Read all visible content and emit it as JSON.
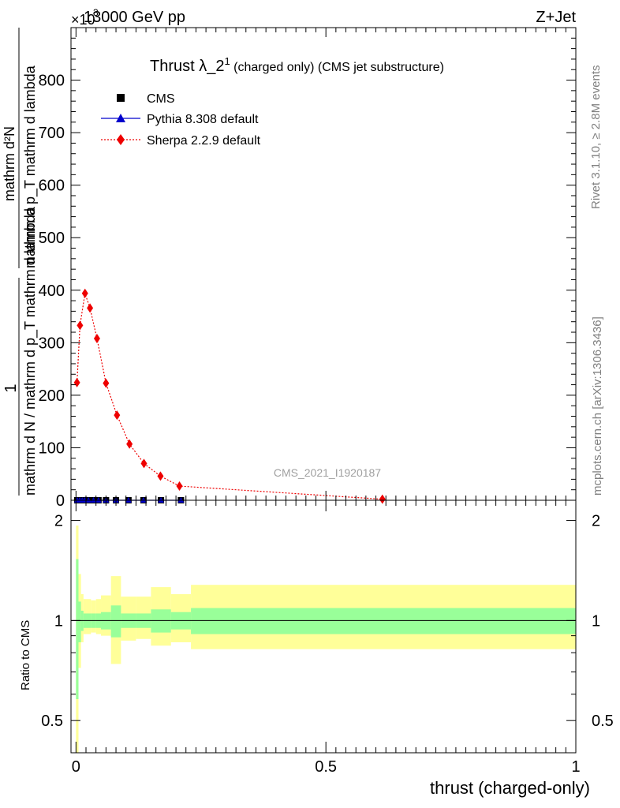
{
  "header": {
    "energy": "13000 GeV pp",
    "process": "Z+Jet",
    "multiplier": "×10",
    "exponent": "3"
  },
  "side_labels": {
    "rivet": "Rivet 3.1.10, ≥ 2.8M events",
    "mcplots": "mcplots.cern.ch [arXiv:1306.3436]"
  },
  "main_plot": {
    "title_main": "Thrust λ_2",
    "title_sup": "1",
    "title_sub": " (charged only) (CMS jet substructure)",
    "ylabel_fraction_top": "1",
    "ylabel_fraction_mid": "mathrm d N / mathrm d p_T mathrm d lambda",
    "ylabel_right_top": "mathrm d²N",
    "ylabel_right_bottom": "mathrm d p_T mathrm d lambda",
    "watermark": "CMS_2021_I1920187",
    "legend": [
      {
        "label": "CMS",
        "marker": "square",
        "color": "#000000"
      },
      {
        "label": "Pythia 8.308 default",
        "marker": "triangle",
        "color": "#0000cc"
      },
      {
        "label": "Sherpa 2.2.9 default",
        "marker": "diamond",
        "color": "#ee0000"
      }
    ],
    "yticks": [
      "0",
      "100",
      "200",
      "300",
      "400",
      "500",
      "600",
      "700",
      "800"
    ]
  },
  "ratio_plot": {
    "ylabel": "Ratio to CMS",
    "yticks": [
      "0.5",
      "1",
      "2"
    ],
    "xticks": [
      "0",
      "0.5",
      "1"
    ],
    "xlabel": "thrust (charged-only)"
  },
  "colors": {
    "cms": "#000000",
    "pythia": "#0000cc",
    "sherpa": "#ee0000",
    "band_inner": "#99ff99",
    "band_outer": "#ffff99"
  },
  "chart_data": [
    {
      "type": "scatter",
      "xlabel": "",
      "ylabel": "1 / mathrm d N / mathrm d p_T mathrm d lambda · mathrm d²N / mathrm d p_T mathrm d lambda",
      "xlim": [
        -0.01,
        1.0
      ],
      "ylim": [
        0,
        900
      ],
      "y_multiplier": 1000,
      "series": [
        {
          "name": "CMS",
          "x": [
            0.0025,
            0.0075,
            0.0125,
            0.0175,
            0.025,
            0.035,
            0.045,
            0.06,
            0.08,
            0.105,
            0.135,
            0.17,
            0.21
          ],
          "y": [
            0,
            0,
            0,
            0,
            0,
            0,
            0,
            0,
            0,
            0,
            0,
            0,
            0
          ]
        },
        {
          "name": "Pythia 8.308 default",
          "x": [
            0.0025,
            0.0075,
            0.0125,
            0.0175,
            0.025,
            0.035,
            0.045,
            0.06,
            0.08,
            0.105,
            0.135,
            0.17,
            0.21
          ],
          "y": [
            0,
            0,
            0,
            0,
            0,
            0,
            0,
            0,
            0,
            0,
            0,
            0,
            0
          ]
        },
        {
          "name": "Sherpa 2.2.9 default",
          "x": [
            0.002,
            0.008,
            0.018,
            0.028,
            0.042,
            0.06,
            0.082,
            0.107,
            0.136,
            0.169,
            0.207,
            0.613
          ],
          "y": [
            224,
            333,
            394,
            366,
            308,
            223,
            162,
            107,
            70,
            46,
            27,
            2
          ]
        }
      ]
    },
    {
      "type": "area",
      "ylabel": "Ratio to CMS",
      "xlabel": "thrust (charged-only)",
      "xlim": [
        -0.01,
        1.0
      ],
      "ylim": [
        0.4,
        2.3
      ],
      "y_scale": "log",
      "reference": 1.0,
      "bands": {
        "bin_edges": [
          0.0,
          0.005,
          0.01,
          0.015,
          0.02,
          0.03,
          0.04,
          0.05,
          0.07,
          0.09,
          0.12,
          0.15,
          0.19,
          0.23,
          1.0
        ],
        "inner_lo": [
          0.58,
          0.86,
          0.93,
          0.95,
          0.95,
          0.95,
          0.95,
          0.94,
          0.89,
          0.95,
          0.95,
          0.92,
          0.94,
          0.91
        ],
        "inner_hi": [
          1.53,
          1.14,
          1.07,
          1.05,
          1.05,
          1.05,
          1.05,
          1.06,
          1.11,
          1.05,
          1.05,
          1.08,
          1.06,
          1.09
        ],
        "outer_lo": [
          0.35,
          0.72,
          0.86,
          0.91,
          0.91,
          0.92,
          0.91,
          0.9,
          0.74,
          0.87,
          0.88,
          0.84,
          0.86,
          0.82
        ],
        "outer_hi": [
          1.93,
          1.38,
          1.2,
          1.16,
          1.16,
          1.15,
          1.16,
          1.19,
          1.36,
          1.18,
          1.18,
          1.26,
          1.2,
          1.28
        ]
      }
    }
  ]
}
